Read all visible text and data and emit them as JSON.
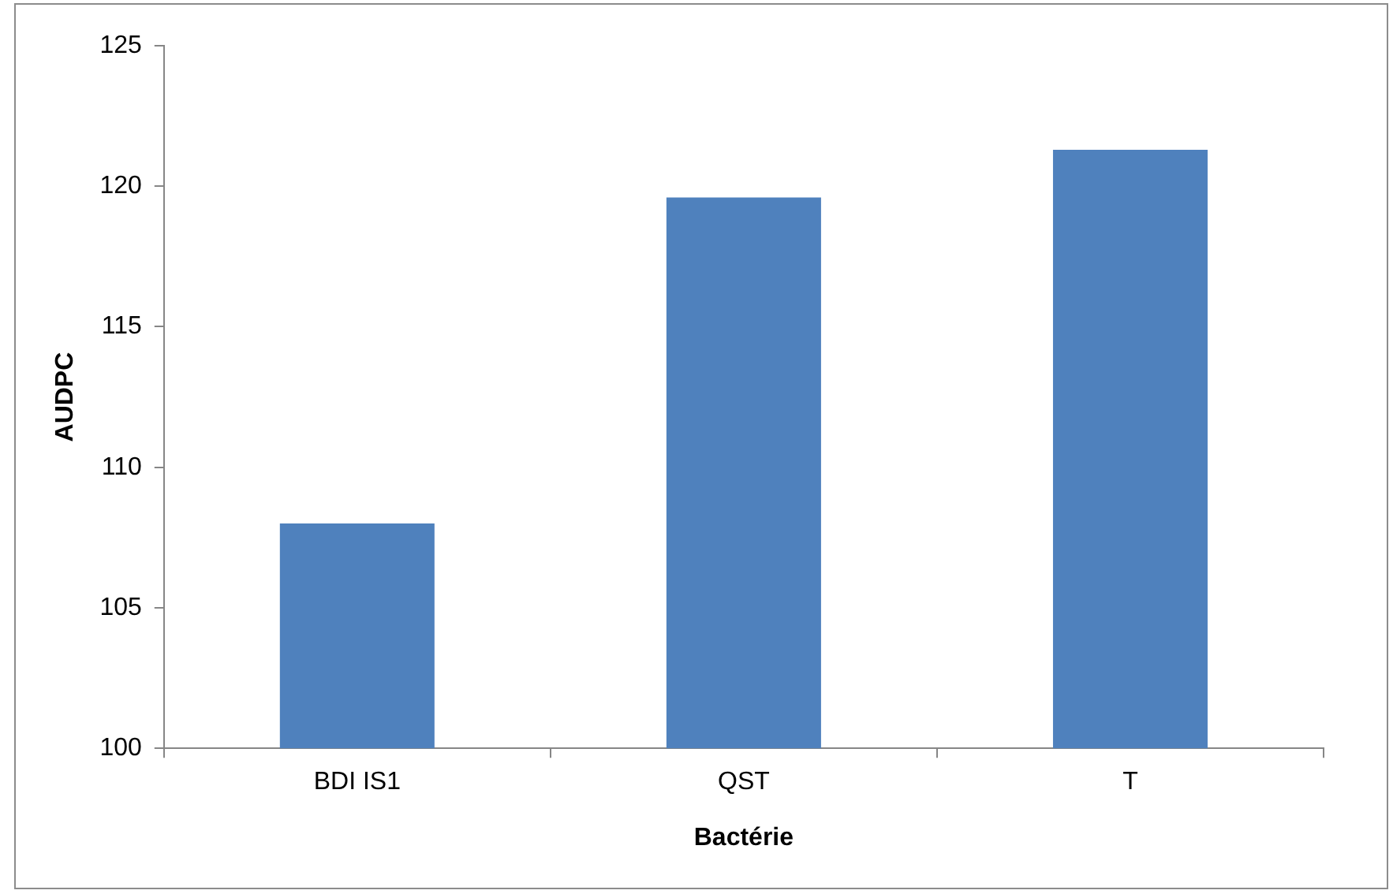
{
  "chart_data": {
    "type": "bar",
    "xlabel": "Bactérie",
    "ylabel": "AUDPC",
    "categories": [
      "BDI IS1",
      "QST",
      "T"
    ],
    "values": [
      108.0,
      119.6,
      121.3
    ],
    "color": "#4f81bd",
    "ylim": [
      100,
      125
    ],
    "yticks": [
      100,
      105,
      110,
      115,
      120,
      125
    ],
    "grid": false,
    "legend": false
  }
}
